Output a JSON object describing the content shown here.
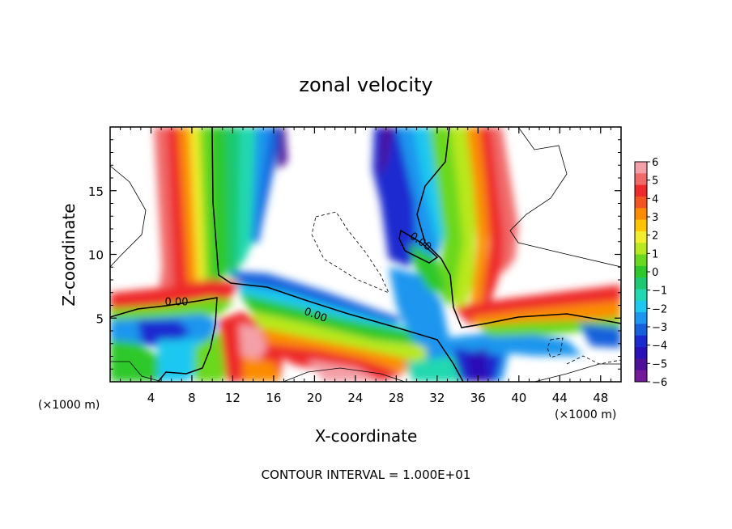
{
  "chart_data": {
    "type": "heatmap",
    "title": "zonal velocity",
    "xlabel": "X-coordinate",
    "ylabel": "Z-coordinate",
    "x_unit_left": "(×1000 m)",
    "x_unit_right": "(×1000 m)",
    "footer": "CONTOUR INTERVAL = 1.000E+01",
    "x_range": [
      0,
      50
    ],
    "y_range": [
      0,
      20
    ],
    "x_ticks": [
      4,
      8,
      12,
      16,
      20,
      24,
      28,
      32,
      36,
      40,
      44,
      48
    ],
    "y_ticks": [
      5,
      10,
      15
    ],
    "contour_labels": [
      {
        "text": "0.00",
        "x": 6.5,
        "y": 6.0
      },
      {
        "text": "0.00",
        "x": 20.0,
        "y": 5.0
      },
      {
        "text": "0.00",
        "x": 30.2,
        "y": 10.8
      }
    ],
    "colorbar": {
      "labels": [
        "6",
        "5",
        "4",
        "3",
        "2",
        "1",
        "0",
        "−1",
        "−2",
        "−3",
        "−4",
        "−5",
        "−6"
      ],
      "colors": [
        "#f4a0a8",
        "#f06a6a",
        "#ee2a2a",
        "#f35520",
        "#fb8c00",
        "#ffc400",
        "#f2ee2e",
        "#b8e81e",
        "#6ad81e",
        "#2ec82a",
        "#1ec870",
        "#22d8b0",
        "#1ec8f0",
        "#1c96ee",
        "#1660dc",
        "#1a2ad0",
        "#2a10b8",
        "#4e1098",
        "#721a9a"
      ]
    },
    "grid": false
  }
}
